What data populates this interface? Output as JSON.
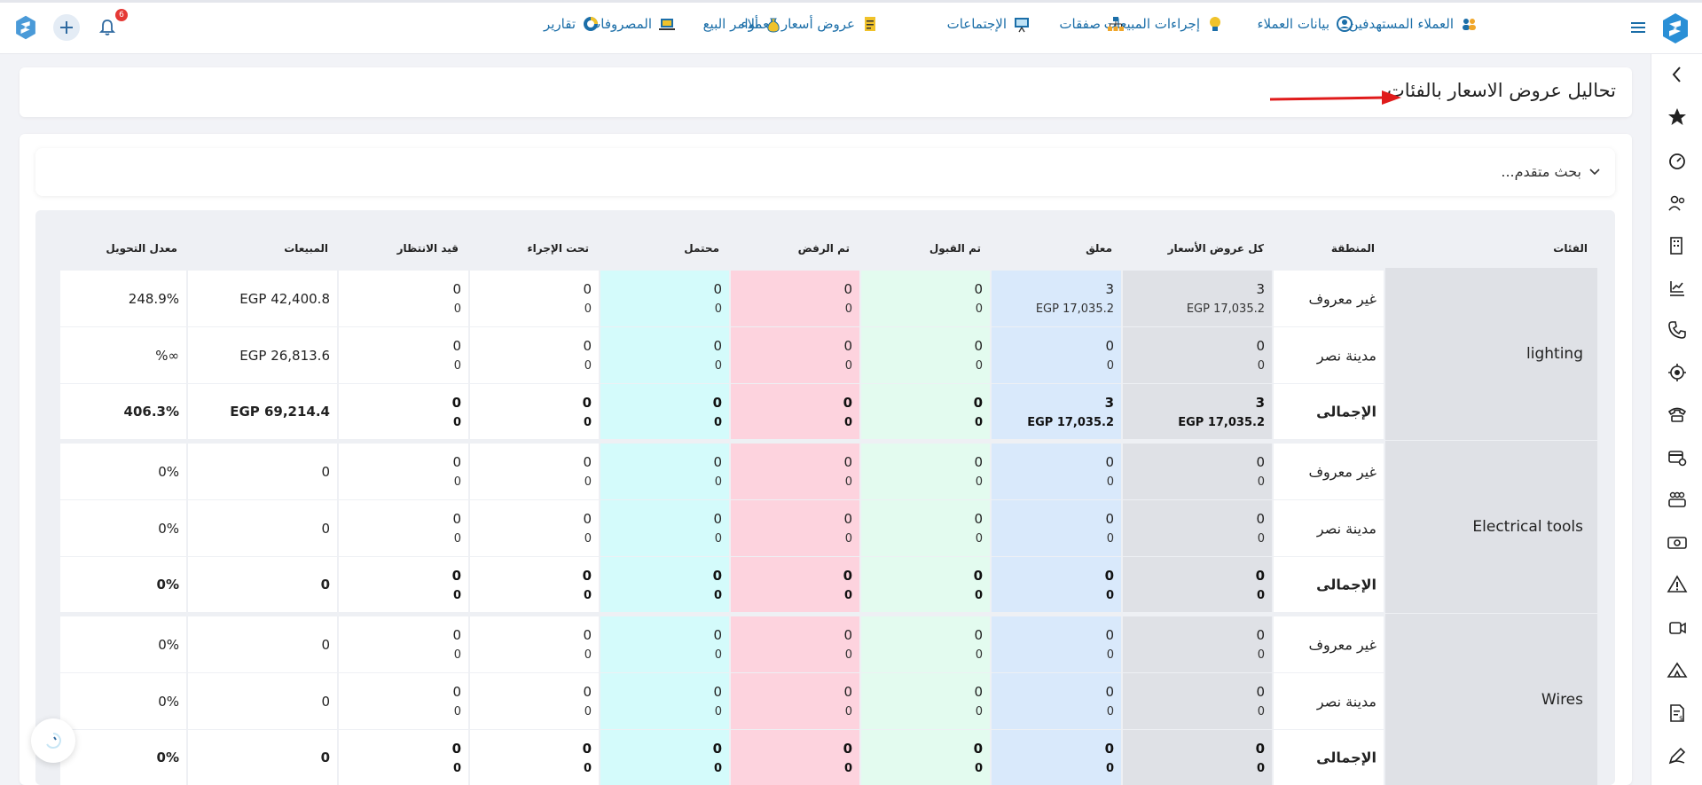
{
  "topbar": {
    "nav": [
      {
        "id": "target-clients",
        "label": "العملاء المستهدفين",
        "icon": "people-target-icon"
      },
      {
        "id": "client-data",
        "label": "بيانات العملاء",
        "icon": "client-data-icon"
      },
      {
        "id": "sales-actions",
        "label": "إجراءات المبيعات",
        "icon": "lightbulb-icon"
      },
      {
        "id": "deals",
        "label": "صفقات",
        "icon": "org-chart-icon"
      },
      {
        "id": "meetings",
        "label": "الإجتماعات",
        "icon": "presentation-icon"
      },
      {
        "id": "quotes",
        "label": "عروض أسعار العملاء",
        "icon": "document-icon"
      },
      {
        "id": "sales-orders",
        "label": "أوامر البيع",
        "icon": "money-bag-icon"
      },
      {
        "id": "expenses",
        "label": "المصروفات",
        "icon": "laptop-icon"
      },
      {
        "id": "reports",
        "label": "تقارير",
        "icon": "chart-circle-icon"
      }
    ],
    "notification_count": "6"
  },
  "page_title": "تحاليل عروض الاسعار بالفئات",
  "search": {
    "label": "بحث متقدم..."
  },
  "columns": {
    "category": "الفئات",
    "region": "المنطقة",
    "all_quotes": "كل عروض الأسعار",
    "pending": "معلق",
    "accepted": "تم القبول",
    "rejected": "تم الرفض",
    "potential": "محتمل",
    "in_progress": "تحت الإجراء",
    "waiting": "قيد الانتظار",
    "sales": "المبيعات",
    "conversion": "معدل التحويل"
  },
  "groups": [
    {
      "category": "lighting",
      "rows": [
        {
          "region": "غير معروف",
          "all": [
            "3",
            "EGP 17,035.2"
          ],
          "pending": [
            "3",
            "EGP 17,035.2"
          ],
          "accepted": [
            "0",
            "0"
          ],
          "rejected": [
            "0",
            "0"
          ],
          "potential": [
            "0",
            "0"
          ],
          "in_progress": [
            "0",
            "0"
          ],
          "waiting": [
            "0",
            "0"
          ],
          "sales": "EGP 42,400.8",
          "conversion": "248.9%"
        },
        {
          "region": "مدينة نصر",
          "all": [
            "0",
            "0"
          ],
          "pending": [
            "0",
            "0"
          ],
          "accepted": [
            "0",
            "0"
          ],
          "rejected": [
            "0",
            "0"
          ],
          "potential": [
            "0",
            "0"
          ],
          "in_progress": [
            "0",
            "0"
          ],
          "waiting": [
            "0",
            "0"
          ],
          "sales": "EGP 26,813.6",
          "conversion": "%∞"
        },
        {
          "region": "الإجمالى",
          "bold": true,
          "all": [
            "3",
            "EGP 17,035.2"
          ],
          "pending": [
            "3",
            "EGP 17,035.2"
          ],
          "accepted": [
            "0",
            "0"
          ],
          "rejected": [
            "0",
            "0"
          ],
          "potential": [
            "0",
            "0"
          ],
          "in_progress": [
            "0",
            "0"
          ],
          "waiting": [
            "0",
            "0"
          ],
          "sales": "EGP 69,214.4",
          "conversion": "406.3%"
        }
      ]
    },
    {
      "category": "Electrical tools",
      "rows": [
        {
          "region": "غير معروف",
          "all": [
            "0",
            "0"
          ],
          "pending": [
            "0",
            "0"
          ],
          "accepted": [
            "0",
            "0"
          ],
          "rejected": [
            "0",
            "0"
          ],
          "potential": [
            "0",
            "0"
          ],
          "in_progress": [
            "0",
            "0"
          ],
          "waiting": [
            "0",
            "0"
          ],
          "sales": "0",
          "conversion": "0%"
        },
        {
          "region": "مدينة نصر",
          "all": [
            "0",
            "0"
          ],
          "pending": [
            "0",
            "0"
          ],
          "accepted": [
            "0",
            "0"
          ],
          "rejected": [
            "0",
            "0"
          ],
          "potential": [
            "0",
            "0"
          ],
          "in_progress": [
            "0",
            "0"
          ],
          "waiting": [
            "0",
            "0"
          ],
          "sales": "0",
          "conversion": "0%"
        },
        {
          "region": "الإجمالى",
          "bold": true,
          "all": [
            "0",
            "0"
          ],
          "pending": [
            "0",
            "0"
          ],
          "accepted": [
            "0",
            "0"
          ],
          "rejected": [
            "0",
            "0"
          ],
          "potential": [
            "0",
            "0"
          ],
          "in_progress": [
            "0",
            "0"
          ],
          "waiting": [
            "0",
            "0"
          ],
          "sales": "0",
          "conversion": "0%"
        }
      ]
    },
    {
      "category": "Wires",
      "rows": [
        {
          "region": "غير معروف",
          "all": [
            "0",
            "0"
          ],
          "pending": [
            "0",
            "0"
          ],
          "accepted": [
            "0",
            "0"
          ],
          "rejected": [
            "0",
            "0"
          ],
          "potential": [
            "0",
            "0"
          ],
          "in_progress": [
            "0",
            "0"
          ],
          "waiting": [
            "0",
            "0"
          ],
          "sales": "0",
          "conversion": "0%"
        },
        {
          "region": "مدينة نصر",
          "all": [
            "0",
            "0"
          ],
          "pending": [
            "0",
            "0"
          ],
          "accepted": [
            "0",
            "0"
          ],
          "rejected": [
            "0",
            "0"
          ],
          "potential": [
            "0",
            "0"
          ],
          "in_progress": [
            "0",
            "0"
          ],
          "waiting": [
            "0",
            "0"
          ],
          "sales": "0",
          "conversion": "0%"
        },
        {
          "region": "الإجمالى",
          "bold": true,
          "all": [
            "0",
            "0"
          ],
          "pending": [
            "0",
            "0"
          ],
          "accepted": [
            "0",
            "0"
          ],
          "rejected": [
            "0",
            "0"
          ],
          "potential": [
            "0",
            "0"
          ],
          "in_progress": [
            "0",
            "0"
          ],
          "waiting": [
            "0",
            "0"
          ],
          "sales": "0",
          "conversion": "0%"
        }
      ]
    }
  ],
  "colors": {
    "accent": "#1b6ea8",
    "all_col": "#dfe1e6",
    "pending_col": "#d9e9fb",
    "accepted_col": "#e3fbef",
    "rejected_col": "#fdd3de",
    "potential_col": "#d4fbfb",
    "category_col": "#dfe1e6",
    "badge": "#e53935"
  },
  "sidebar": {
    "items": [
      "chevron-left-icon",
      "star-icon",
      "speedometer-icon",
      "users-icon",
      "building-icon",
      "chart-hand-icon",
      "phone-icon",
      "target-icon",
      "telephone-icon",
      "card-settings-icon",
      "team-icon",
      "money-icon",
      "warning-icon",
      "video-icon",
      "tent-icon",
      "invoice-icon",
      "pen-icon"
    ]
  }
}
